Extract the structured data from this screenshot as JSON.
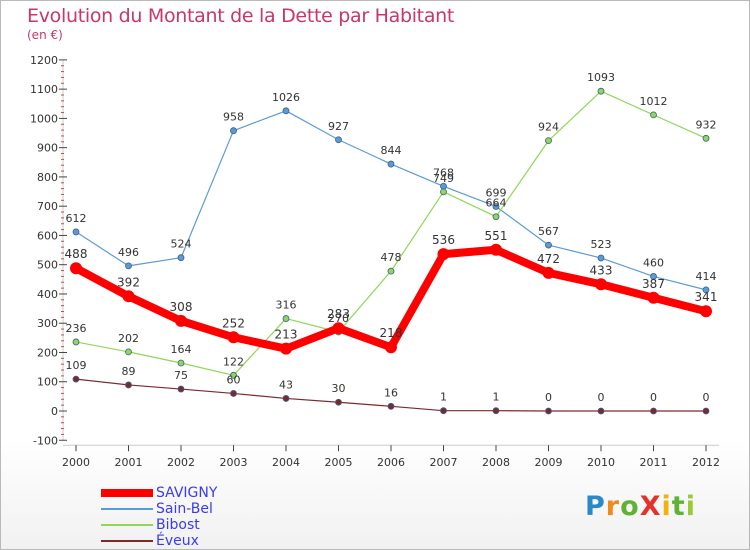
{
  "title": "Evolution du Montant de la Dette par Habitant",
  "subtitle": "(en €)",
  "logo": {
    "letters": [
      {
        "ch": "P",
        "color": "#2b88c9"
      },
      {
        "ch": "r",
        "color": "#ef8a1c"
      },
      {
        "ch": "o",
        "color": "#5fb233"
      },
      {
        "ch": "X",
        "color": "#e4322b"
      },
      {
        "ch": "i",
        "color": "#f1b10e"
      },
      {
        "ch": "t",
        "color": "#5fb233"
      },
      {
        "ch": "i",
        "color": "#9aca3c"
      }
    ]
  },
  "chart_data": {
    "type": "line",
    "title": "Evolution du Montant de la Dette par Habitant",
    "subtitle": "(en €)",
    "x": [
      "2000",
      "2001",
      "2002",
      "2003",
      "2004",
      "2005",
      "2006",
      "2007",
      "2008",
      "2009",
      "2010",
      "2011",
      "2012"
    ],
    "ylim": [
      -100,
      1200
    ],
    "yticks": [
      -100,
      0,
      100,
      200,
      300,
      400,
      500,
      600,
      700,
      800,
      900,
      1000,
      1100,
      1200
    ],
    "grid": false,
    "legend_position": "bottom-left",
    "series": [
      {
        "name": "Sain-Bel",
        "color": "#5b9bd5",
        "values": [
          612,
          496,
          524,
          958,
          1026,
          927,
          844,
          768,
          699,
          567,
          523,
          460,
          414
        ]
      },
      {
        "name": "Bibost",
        "color": "#8fd65a",
        "values": [
          236,
          202,
          164,
          122,
          316,
          270,
          478,
          749,
          664,
          924,
          1093,
          1012,
          932
        ]
      },
      {
        "name": "Éveux",
        "color": "#7a2a2a",
        "values": [
          109,
          89,
          75,
          60,
          43,
          30,
          16,
          1,
          1,
          0,
          0,
          0,
          0
        ]
      },
      {
        "name": "SAVIGNY",
        "color": "#ff0000",
        "values": [
          488,
          392,
          308,
          252,
          213,
          283,
          218,
          536,
          551,
          472,
          433,
          387,
          341
        ]
      }
    ],
    "legend_order": [
      "SAVIGNY",
      "Sain-Bel",
      "Bibost",
      "Éveux"
    ]
  }
}
